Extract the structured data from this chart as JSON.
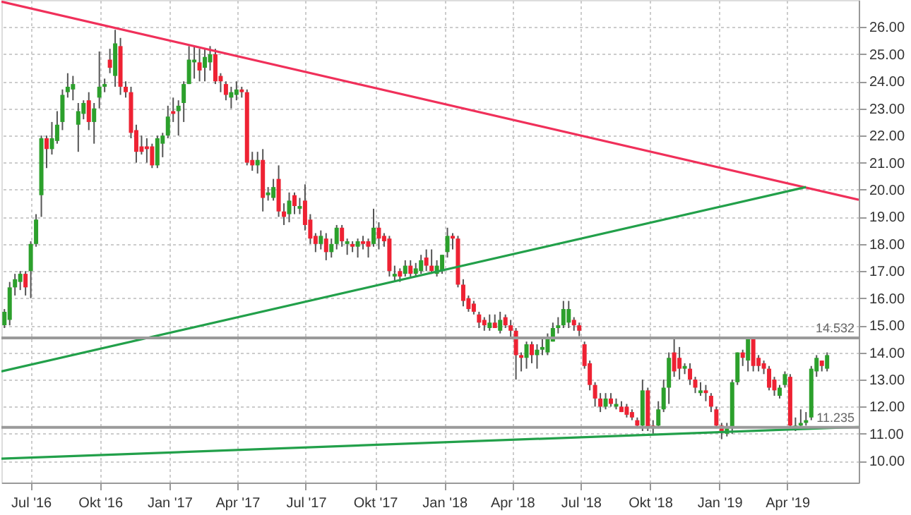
{
  "chart_data": {
    "type": "candlestick",
    "x": [
      "2016-05-27",
      "2016-06-03",
      "2016-06-10",
      "2016-06-17",
      "2016-06-24",
      "2016-07-01",
      "2016-07-08",
      "2016-07-15",
      "2016-07-22",
      "2016-07-29",
      "2016-08-05",
      "2016-08-12",
      "2016-08-19",
      "2016-08-26",
      "2016-09-02",
      "2016-09-09",
      "2016-09-16",
      "2016-09-23",
      "2016-09-30",
      "2016-10-07",
      "2016-10-14",
      "2016-10-21",
      "2016-10-28",
      "2016-11-04",
      "2016-11-11",
      "2016-11-18",
      "2016-11-25",
      "2016-12-02",
      "2016-12-09",
      "2016-12-16",
      "2016-12-23",
      "2016-12-30",
      "2017-01-06",
      "2017-01-13",
      "2017-01-20",
      "2017-01-27",
      "2017-02-03",
      "2017-02-10",
      "2017-02-17",
      "2017-02-24",
      "2017-03-03",
      "2017-03-10",
      "2017-03-17",
      "2017-03-24",
      "2017-03-31",
      "2017-04-07",
      "2017-04-14",
      "2017-04-21",
      "2017-04-28",
      "2017-05-05",
      "2017-05-12",
      "2017-05-19",
      "2017-05-26",
      "2017-06-02",
      "2017-06-09",
      "2017-06-16",
      "2017-06-23",
      "2017-06-30",
      "2017-07-07",
      "2017-07-14",
      "2017-07-21",
      "2017-07-28",
      "2017-08-04",
      "2017-08-11",
      "2017-08-18",
      "2017-08-25",
      "2017-09-01",
      "2017-09-08",
      "2017-09-15",
      "2017-09-22",
      "2017-09-29",
      "2017-10-06",
      "2017-10-13",
      "2017-10-20",
      "2017-10-27",
      "2017-11-03",
      "2017-11-10",
      "2017-11-17",
      "2017-11-24",
      "2017-12-01",
      "2017-12-08",
      "2017-12-15",
      "2017-12-22",
      "2017-12-29",
      "2018-01-05",
      "2018-01-12",
      "2018-01-19",
      "2018-01-26",
      "2018-02-02",
      "2018-02-09",
      "2018-02-16",
      "2018-02-23",
      "2018-03-02",
      "2018-03-09",
      "2018-03-16",
      "2018-03-23",
      "2018-03-30",
      "2018-04-06",
      "2018-04-13",
      "2018-04-20",
      "2018-04-27",
      "2018-05-04",
      "2018-05-11",
      "2018-05-18",
      "2018-05-25",
      "2018-06-01",
      "2018-06-08",
      "2018-06-15",
      "2018-06-22",
      "2018-06-29",
      "2018-07-06",
      "2018-07-13",
      "2018-07-20",
      "2018-07-27",
      "2018-08-03",
      "2018-08-10",
      "2018-08-17",
      "2018-08-24",
      "2018-08-31",
      "2018-09-07",
      "2018-09-14",
      "2018-09-21",
      "2018-09-28",
      "2018-10-05",
      "2018-10-12",
      "2018-10-19",
      "2018-10-26",
      "2018-11-02",
      "2018-11-09",
      "2018-11-16",
      "2018-11-23",
      "2018-11-30",
      "2018-12-07",
      "2018-12-14",
      "2018-12-21",
      "2018-12-28",
      "2019-01-04",
      "2019-01-11",
      "2019-01-18",
      "2019-01-25",
      "2019-02-01",
      "2019-02-08",
      "2019-02-15",
      "2019-02-22",
      "2019-03-01",
      "2019-03-08",
      "2019-03-15",
      "2019-03-22",
      "2019-03-29",
      "2019-04-05",
      "2019-04-12",
      "2019-04-19",
      "2019-04-26",
      "2019-05-03",
      "2019-05-10",
      "2019-05-17",
      "2019-05-24"
    ],
    "ohlc": [
      [
        15.0,
        15.6,
        14.9,
        15.5
      ],
      [
        15.2,
        16.6,
        15.0,
        16.4
      ],
      [
        16.4,
        16.9,
        16.1,
        16.7
      ],
      [
        16.6,
        17.0,
        16.3,
        16.9
      ],
      [
        16.9,
        17.0,
        16.1,
        16.4
      ],
      [
        17.0,
        18.1,
        16.0,
        18.0
      ],
      [
        18.0,
        19.1,
        17.9,
        18.9
      ],
      [
        19.8,
        22.0,
        19.0,
        21.9
      ],
      [
        21.9,
        22.0,
        20.8,
        21.5
      ],
      [
        21.5,
        22.5,
        21.3,
        21.9
      ],
      [
        21.8,
        22.9,
        21.7,
        22.4
      ],
      [
        22.5,
        23.7,
        22.2,
        23.5
      ],
      [
        23.6,
        24.3,
        23.4,
        23.8
      ],
      [
        23.7,
        24.2,
        23.3,
        23.9
      ],
      [
        22.4,
        23.2,
        21.4,
        22.9
      ],
      [
        22.8,
        23.3,
        22.6,
        23.2
      ],
      [
        23.3,
        23.6,
        22.2,
        22.5
      ],
      [
        22.5,
        23.2,
        21.7,
        23.0
      ],
      [
        23.4,
        25.1,
        23.0,
        23.8
      ],
      [
        23.8,
        24.1,
        23.6,
        23.9
      ],
      [
        24.8,
        25.2,
        24.3,
        24.5
      ],
      [
        24.2,
        25.9,
        23.8,
        25.4
      ],
      [
        25.3,
        25.6,
        23.5,
        23.8
      ],
      [
        23.8,
        24.0,
        23.4,
        23.6
      ],
      [
        23.6,
        23.8,
        21.9,
        22.1
      ],
      [
        22.2,
        22.4,
        21.0,
        21.4
      ],
      [
        21.6,
        22.0,
        21.3,
        21.4
      ],
      [
        21.6,
        21.9,
        21.0,
        21.5
      ],
      [
        21.6,
        21.7,
        20.8,
        20.9
      ],
      [
        20.9,
        22.0,
        20.8,
        21.9
      ],
      [
        21.7,
        22.1,
        21.2,
        22.0
      ],
      [
        22.0,
        23.1,
        21.9,
        22.7
      ],
      [
        22.9,
        23.4,
        22.5,
        22.8
      ],
      [
        22.9,
        23.3,
        22.0,
        23.1
      ],
      [
        23.2,
        24.0,
        22.5,
        23.9
      ],
      [
        23.9,
        25.3,
        23.9,
        24.8
      ],
      [
        24.7,
        25.3,
        24.1,
        24.8
      ],
      [
        24.7,
        25.2,
        24.0,
        24.4
      ],
      [
        24.5,
        25.2,
        24.0,
        24.9
      ],
      [
        24.7,
        25.3,
        24.4,
        25.0
      ],
      [
        25.0,
        25.2,
        23.9,
        24.0
      ],
      [
        24.2,
        24.3,
        23.6,
        24.0
      ],
      [
        23.9,
        24.0,
        23.3,
        23.5
      ],
      [
        23.4,
        23.8,
        23.0,
        23.6
      ],
      [
        23.5,
        24.0,
        23.3,
        23.7
      ],
      [
        23.7,
        23.8,
        23.4,
        23.6
      ],
      [
        23.6,
        23.7,
        20.9,
        21.0
      ],
      [
        21.1,
        21.4,
        20.7,
        20.9
      ],
      [
        20.9,
        21.4,
        20.6,
        21.1
      ],
      [
        21.1,
        21.5,
        19.2,
        19.7
      ],
      [
        19.8,
        20.1,
        19.6,
        19.9
      ],
      [
        19.7,
        20.4,
        19.6,
        20.1
      ],
      [
        20.4,
        20.9,
        19.0,
        19.2
      ],
      [
        19.2,
        19.5,
        18.7,
        19.0
      ],
      [
        19.1,
        19.9,
        18.8,
        19.6
      ],
      [
        19.8,
        19.9,
        19.1,
        19.4
      ],
      [
        19.3,
        19.7,
        19.1,
        19.4
      ],
      [
        19.6,
        20.2,
        18.5,
        18.7
      ],
      [
        18.9,
        19.1,
        18.0,
        18.2
      ],
      [
        18.3,
        18.4,
        17.7,
        18.0
      ],
      [
        18.0,
        18.5,
        17.8,
        18.3
      ],
      [
        18.2,
        18.4,
        17.4,
        17.7
      ],
      [
        17.7,
        18.2,
        17.5,
        18.0
      ],
      [
        18.0,
        18.7,
        17.8,
        18.6
      ],
      [
        18.6,
        18.7,
        17.9,
        18.1
      ],
      [
        18.0,
        18.2,
        17.6,
        18.1
      ],
      [
        18.0,
        18.1,
        17.7,
        17.9
      ],
      [
        17.9,
        18.2,
        17.5,
        18.1
      ],
      [
        18.1,
        18.3,
        17.8,
        18.0
      ],
      [
        18.1,
        18.2,
        17.5,
        17.9
      ],
      [
        18.0,
        19.3,
        17.9,
        18.6
      ],
      [
        18.6,
        18.8,
        17.8,
        18.2
      ],
      [
        18.3,
        18.4,
        17.9,
        18.1
      ],
      [
        18.2,
        18.3,
        16.8,
        17.0
      ],
      [
        16.8,
        17.2,
        16.6,
        16.9
      ],
      [
        17.0,
        17.1,
        16.6,
        16.8
      ],
      [
        16.9,
        17.4,
        16.8,
        17.2
      ],
      [
        17.2,
        17.4,
        16.8,
        16.9
      ],
      [
        16.9,
        17.3,
        16.8,
        17.1
      ],
      [
        17.0,
        17.6,
        16.9,
        17.4
      ],
      [
        17.5,
        17.8,
        17.0,
        17.2
      ],
      [
        17.2,
        17.8,
        16.9,
        17.0
      ],
      [
        16.9,
        17.4,
        16.8,
        17.2
      ],
      [
        17.0,
        17.6,
        16.9,
        17.6
      ],
      [
        17.7,
        18.6,
        17.5,
        18.3
      ],
      [
        18.3,
        18.4,
        17.8,
        18.2
      ],
      [
        18.2,
        18.3,
        16.4,
        16.5
      ],
      [
        16.5,
        16.7,
        15.7,
        15.9
      ],
      [
        16.0,
        16.1,
        15.5,
        15.6
      ],
      [
        15.8,
        15.9,
        15.4,
        15.5
      ],
      [
        15.4,
        15.5,
        14.9,
        15.1
      ],
      [
        15.2,
        15.3,
        14.8,
        15.0
      ],
      [
        14.9,
        15.4,
        14.8,
        15.1
      ],
      [
        15.1,
        15.4,
        14.9,
        14.9
      ],
      [
        14.8,
        15.5,
        14.7,
        15.2
      ],
      [
        15.3,
        15.4,
        14.9,
        15.0
      ],
      [
        15.0,
        15.2,
        14.5,
        14.8
      ],
      [
        14.8,
        14.9,
        13.0,
        13.9
      ],
      [
        13.9,
        14.0,
        13.3,
        13.8
      ],
      [
        13.8,
        14.4,
        13.4,
        14.3
      ],
      [
        14.3,
        14.4,
        13.6,
        13.9
      ],
      [
        13.9,
        14.3,
        13.4,
        14.1
      ],
      [
        14.1,
        14.5,
        13.9,
        14.2
      ],
      [
        14.0,
        14.7,
        13.9,
        14.5
      ],
      [
        14.4,
        15.1,
        14.4,
        14.9
      ],
      [
        14.9,
        15.3,
        14.7,
        15.0
      ],
      [
        15.0,
        15.9,
        14.9,
        15.6
      ],
      [
        15.1,
        15.9,
        14.9,
        15.6
      ],
      [
        15.2,
        15.3,
        14.8,
        15.0
      ],
      [
        15.0,
        15.1,
        14.6,
        14.8
      ],
      [
        14.3,
        14.4,
        13.4,
        13.5
      ],
      [
        13.6,
        13.7,
        12.6,
        12.8
      ],
      [
        12.8,
        12.9,
        12.0,
        12.3
      ],
      [
        12.3,
        12.5,
        11.8,
        12.0
      ],
      [
        12.0,
        12.5,
        11.9,
        12.3
      ],
      [
        12.3,
        12.5,
        12.0,
        12.1
      ],
      [
        12.0,
        12.3,
        11.9,
        12.1
      ],
      [
        12.0,
        12.2,
        11.8,
        11.8
      ],
      [
        12.0,
        12.1,
        11.6,
        11.7
      ],
      [
        11.8,
        11.9,
        11.5,
        11.6
      ],
      [
        11.5,
        11.6,
        11.2,
        11.3
      ],
      [
        11.3,
        13.0,
        11.1,
        12.6
      ],
      [
        12.6,
        12.7,
        11.1,
        11.2
      ],
      [
        11.3,
        11.5,
        11.0,
        11.2
      ],
      [
        11.3,
        12.2,
        11.2,
        11.9
      ],
      [
        11.9,
        13.0,
        11.8,
        12.7
      ],
      [
        12.7,
        14.0,
        12.1,
        13.8
      ],
      [
        14.0,
        14.5,
        13.1,
        13.3
      ],
      [
        13.8,
        14.2,
        13.0,
        13.4
      ],
      [
        13.4,
        13.6,
        13.2,
        13.5
      ],
      [
        13.4,
        13.6,
        12.8,
        13.0
      ],
      [
        13.0,
        13.1,
        12.5,
        12.7
      ],
      [
        12.5,
        12.9,
        12.4,
        12.6
      ],
      [
        12.6,
        12.8,
        12.2,
        12.5
      ],
      [
        12.4,
        12.5,
        11.8,
        12.0
      ],
      [
        11.9,
        12.0,
        11.2,
        11.3
      ],
      [
        11.3,
        11.4,
        10.8,
        11.1
      ],
      [
        11.0,
        11.4,
        10.9,
        11.2
      ],
      [
        11.2,
        13.0,
        11.0,
        12.9
      ],
      [
        12.9,
        14.0,
        12.8,
        14.0
      ],
      [
        14.0,
        14.1,
        13.5,
        13.8
      ],
      [
        13.7,
        14.5,
        13.3,
        14.5
      ],
      [
        14.5,
        14.5,
        13.3,
        13.5
      ],
      [
        13.8,
        13.9,
        13.3,
        13.5
      ],
      [
        13.6,
        13.7,
        13.2,
        13.4
      ],
      [
        13.4,
        13.5,
        12.6,
        12.7
      ],
      [
        13.0,
        13.1,
        12.4,
        12.6
      ],
      [
        12.4,
        12.8,
        12.3,
        12.7
      ],
      [
        12.8,
        13.3,
        12.7,
        13.2
      ],
      [
        13.1,
        13.2,
        11.2,
        11.3
      ],
      [
        11.2,
        11.6,
        11.1,
        11.3
      ],
      [
        11.3,
        11.9,
        11.2,
        11.4
      ],
      [
        11.4,
        11.8,
        11.3,
        11.5
      ],
      [
        11.6,
        13.5,
        11.5,
        13.4
      ],
      [
        13.3,
        13.9,
        13.1,
        13.8
      ],
      [
        13.7,
        13.7,
        13.3,
        13.5
      ],
      [
        13.4,
        14.0,
        13.3,
        13.9
      ]
    ],
    "series": [
      {
        "type": "line",
        "color": "#f0305a",
        "x": [
          "2016-05-23",
          "2019-07-05"
        ],
        "values": [
          26.94,
          19.63
        ]
      },
      {
        "type": "line",
        "color": "#22a04a",
        "x": [
          "2016-05-23",
          "2019-04-26"
        ],
        "values": [
          13.3,
          20.1
        ]
      },
      {
        "type": "line",
        "color": "#22a04a",
        "x": [
          "2016-05-23",
          "2019-07-05"
        ],
        "values": [
          10.08,
          11.25
        ]
      }
    ],
    "ref_lines": [
      {
        "axis": "y",
        "value": 14.532,
        "label": "14.532",
        "color": "#9a9a9a"
      },
      {
        "axis": "y",
        "value": 11.235,
        "label": "11.235",
        "color": "#9a9a9a"
      }
    ],
    "xlim": [
      "2016-05-23",
      "2019-07-05"
    ],
    "xticks": [
      {
        "value": "2016-07-01",
        "label": "Jul '16"
      },
      {
        "value": "2016-10-01",
        "label": "Okt '16"
      },
      {
        "value": "2017-01-01",
        "label": "Jan '17"
      },
      {
        "value": "2017-04-01",
        "label": "Apr '17"
      },
      {
        "value": "2017-07-01",
        "label": "Jul '17"
      },
      {
        "value": "2017-10-01",
        "label": "Okt '17"
      },
      {
        "value": "2018-01-01",
        "label": "Jan '18"
      },
      {
        "value": "2018-04-01",
        "label": "Apr '18"
      },
      {
        "value": "2018-07-01",
        "label": "Jul '18"
      },
      {
        "value": "2018-10-01",
        "label": "Okt '18"
      },
      {
        "value": "2019-01-01",
        "label": "Jan '19"
      },
      {
        "value": "2019-04-01",
        "label": "Apr '19"
      }
    ],
    "ylim": [
      9.2,
      27.0
    ],
    "yticks": [
      {
        "value": 10,
        "label": "10.00"
      },
      {
        "value": 11,
        "label": "11.00"
      },
      {
        "value": 12,
        "label": "12.00"
      },
      {
        "value": 13,
        "label": "13.00"
      },
      {
        "value": 14,
        "label": "14.00"
      },
      {
        "value": 15,
        "label": "15.00"
      },
      {
        "value": 16,
        "label": "16.00"
      },
      {
        "value": 17,
        "label": "17.00"
      },
      {
        "value": 18,
        "label": "18.00"
      },
      {
        "value": 19,
        "label": "19.00"
      },
      {
        "value": 20,
        "label": "20.00"
      },
      {
        "value": 21,
        "label": "21.00"
      },
      {
        "value": 22,
        "label": "22.00"
      },
      {
        "value": 23,
        "label": "23.00"
      },
      {
        "value": 24,
        "label": "24.00"
      },
      {
        "value": 25,
        "label": "25.00"
      },
      {
        "value": 26,
        "label": "26.00"
      }
    ],
    "grid": true
  }
}
